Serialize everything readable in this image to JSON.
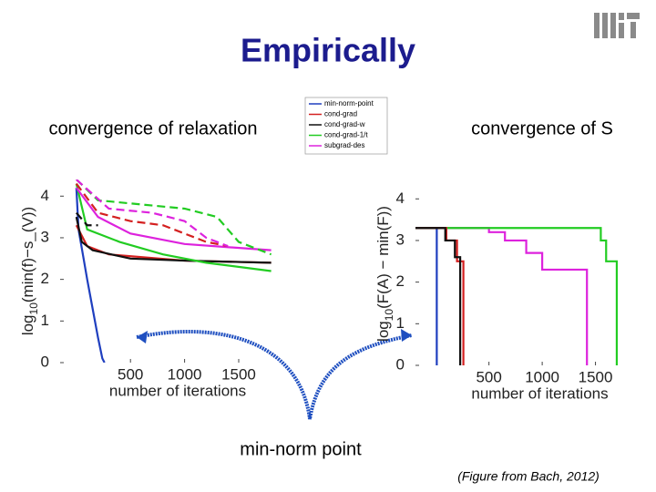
{
  "title": "Empirically",
  "annotation": "min-norm point",
  "caption": "(Figure from Bach, 2012)",
  "chart_data": [
    {
      "type": "line",
      "title": "convergence of relaxation",
      "ylabel": [
        "log",
        "10",
        "(min(f)−s_(V))"
      ],
      "xlabel": "number of iterations",
      "xlim": [
        -150,
        1820
      ],
      "ylim": [
        0,
        4.4
      ],
      "xticks": [
        500,
        1000,
        1500
      ],
      "yticks": [
        0,
        1,
        2,
        3,
        4
      ],
      "series": [
        {
          "name": "min-norm-point",
          "color": "#1f3fbf",
          "x": [
            0,
            20,
            60,
            100,
            150,
            200,
            240,
            260
          ],
          "values": [
            4.2,
            3.2,
            2.6,
            2.0,
            1.3,
            0.6,
            0.1,
            0
          ]
        },
        {
          "name": "cond-grad",
          "color": "#d42020",
          "x": [
            0,
            100,
            300,
            1000,
            1800
          ],
          "values": [
            3.3,
            2.8,
            2.6,
            2.45,
            2.4
          ]
        },
        {
          "name": "cond-grad-w",
          "color": "#101010",
          "x": [
            0,
            50,
            150,
            500,
            1000,
            1800
          ],
          "values": [
            3.5,
            2.9,
            2.7,
            2.5,
            2.45,
            2.4
          ]
        },
        {
          "name": "cond-grad-1/t",
          "color": "#22cc22",
          "x": [
            0,
            100,
            400,
            800,
            1200,
            1800
          ],
          "values": [
            4.3,
            3.2,
            2.9,
            2.6,
            2.4,
            2.2
          ]
        },
        {
          "name": "subgrad-des",
          "color": "#dd22dd",
          "x": [
            0,
            200,
            500,
            1000,
            1800
          ],
          "values": [
            4.2,
            3.5,
            3.1,
            2.85,
            2.7
          ]
        },
        {
          "color": "#d42020",
          "dashed": true,
          "x": [
            0,
            200,
            500,
            800,
            1000,
            1200,
            1400
          ],
          "values": [
            4.3,
            3.6,
            3.4,
            3.3,
            3.1,
            2.9,
            2.8
          ]
        },
        {
          "color": "#101010",
          "dashed": true,
          "x": [
            0,
            100,
            200
          ],
          "values": [
            3.6,
            3.3,
            3.3
          ]
        },
        {
          "color": "#22cc22",
          "dashed": true,
          "x": [
            0,
            200,
            600,
            1000,
            1300,
            1500,
            1800
          ],
          "values": [
            4.4,
            3.9,
            3.8,
            3.7,
            3.5,
            2.9,
            2.6
          ]
        },
        {
          "color": "#dd22dd",
          "dashed": true,
          "x": [
            0,
            300,
            700,
            1000,
            1200,
            1400
          ],
          "values": [
            4.4,
            3.7,
            3.6,
            3.4,
            3.0,
            2.8
          ]
        }
      ]
    },
    {
      "type": "line",
      "title": "convergence of S",
      "step": true,
      "ylabel": [
        "log",
        "10",
        "(F(A) − min(F))"
      ],
      "xlabel": "number of iterations",
      "xlim": [
        -190,
        1940
      ],
      "ylim": [
        0,
        4.4
      ],
      "xticks": [
        500,
        1000,
        1500
      ],
      "yticks": [
        0,
        1,
        2,
        3,
        4
      ],
      "series": [
        {
          "color": "#1f3fbf",
          "x": [
            -190,
            0,
            10
          ],
          "values": [
            3.3,
            3.3,
            0
          ]
        },
        {
          "color": "#dd22dd",
          "x": [
            -190,
            500,
            650,
            850,
            1000,
            1100,
            1420
          ],
          "values": [
            3.3,
            3.2,
            3.0,
            2.7,
            2.3,
            2.3,
            0
          ]
        },
        {
          "color": "#22cc22",
          "x": [
            -190,
            1550,
            1600,
            1680,
            1700
          ],
          "values": [
            3.3,
            3.0,
            2.5,
            2.5,
            0
          ]
        },
        {
          "color": "#d42020",
          "x": [
            -190,
            100,
            200,
            250,
            260
          ],
          "values": [
            3.3,
            3.0,
            2.5,
            2.5,
            0
          ]
        },
        {
          "color": "#101010",
          "x": [
            -190,
            90,
            180,
            220,
            230
          ],
          "values": [
            3.3,
            3.0,
            2.6,
            2.6,
            0
          ]
        }
      ]
    }
  ]
}
